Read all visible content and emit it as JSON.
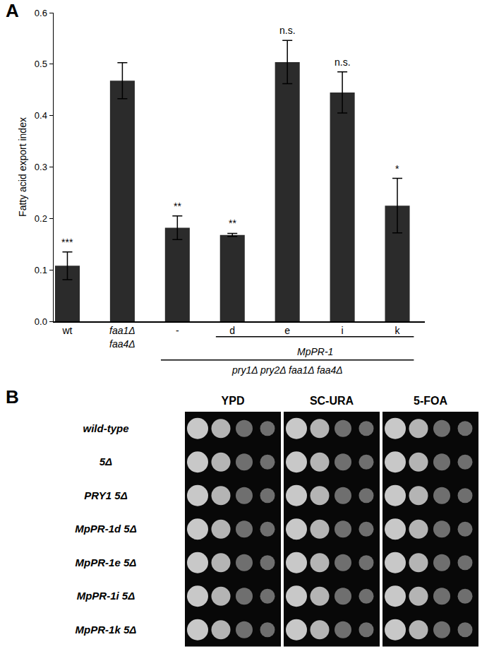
{
  "chart_data": {
    "type": "bar",
    "panel_label": "A",
    "categories": [
      "wt",
      "faa1Δ faa4Δ",
      "-",
      "d",
      "e",
      "i",
      "k"
    ],
    "values": [
      0.108,
      0.468,
      0.182,
      0.168,
      0.504,
      0.445,
      0.225
    ],
    "errors": [
      0.027,
      0.035,
      0.023,
      0.003,
      0.042,
      0.04,
      0.053
    ],
    "significance": [
      "***",
      null,
      "**",
      "**",
      "n.s.",
      "n.s.",
      "*"
    ],
    "y_label": "Fatty acid export index",
    "ylim": [
      0,
      0.6
    ],
    "yticks": [
      {
        "value": 0,
        "label": "0.0"
      },
      0.1,
      0.2,
      0.3,
      0.4,
      0.5,
      0.6
    ],
    "color": "#2b2b2b",
    "grid": false,
    "groups": [
      {
        "label": "MpPR-1",
        "categories": [
          "d",
          "e",
          "i",
          "k"
        ]
      },
      {
        "label": "pry1Δ pry2Δ faa1Δ faa4Δ",
        "categories": [
          "-",
          "d",
          "e",
          "i",
          "k"
        ]
      }
    ]
  },
  "panel_b": {
    "panel_label": "B",
    "media": [
      "YPD",
      "SC-URA",
      "5-FOA"
    ],
    "strains": [
      "wild-type",
      "5Δ",
      "PRY1 5Δ",
      "MpPR-1d 5Δ",
      "MpPR-1e 5Δ",
      "MpPR-1i 5Δ",
      "MpPR-1k 5Δ"
    ]
  }
}
